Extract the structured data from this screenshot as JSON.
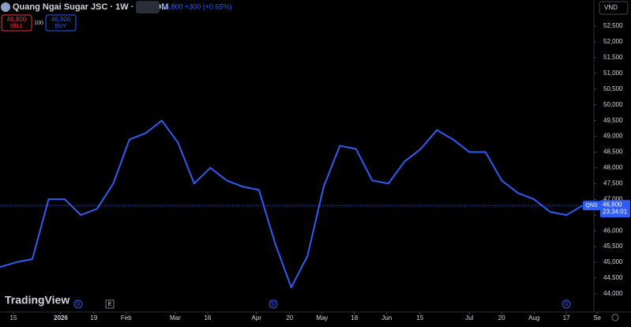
{
  "header": {
    "title": "Quang Ngai Sugar JSC · 1W · UPCOM",
    "quote": "46,800 +300 (+0.65%)",
    "sell_price": "46,800",
    "sell_label": "SELL",
    "spread": "100",
    "buy_price": "46,900",
    "buy_label": "BUY",
    "currency": "VND",
    "logo": "TradingView",
    "event_d": "D",
    "event_e": "E"
  },
  "chart_data": {
    "type": "line",
    "symbol": "QNS",
    "countdown": "23:34:01",
    "color": "#2f5cf6",
    "values": [
      44850,
      45000,
      45100,
      47000,
      47000,
      46500,
      46700,
      47500,
      48900,
      49100,
      49500,
      48800,
      47500,
      48000,
      47600,
      47400,
      47300,
      45600,
      44200,
      45200,
      47400,
      48700,
      48600,
      47600,
      47500,
      48200,
      48600,
      49200,
      48900,
      48500,
      48500,
      47600,
      47200,
      47000,
      46600,
      46500,
      46800
    ],
    "last_price": {
      "value": 46800,
      "label": "46,800"
    },
    "ylim": [
      43420,
      53330
    ],
    "yticks": [
      {
        "value": 44000,
        "label": "44,000"
      },
      {
        "value": 44500,
        "label": "44,500"
      },
      {
        "value": 45000,
        "label": "45,000"
      },
      {
        "value": 45500,
        "label": "45,500"
      },
      {
        "value": 46000,
        "label": "46,000"
      },
      {
        "value": 46500,
        "label": "46,500"
      },
      {
        "value": 47000,
        "label": "47,000"
      },
      {
        "value": 47500,
        "label": "47,500"
      },
      {
        "value": 48000,
        "label": "48,000"
      },
      {
        "value": 48500,
        "label": "48,500"
      },
      {
        "value": 49000,
        "label": "49,000"
      },
      {
        "value": 49500,
        "label": "49,500"
      },
      {
        "value": 50000,
        "label": "50,000"
      },
      {
        "value": 50500,
        "label": "50,500"
      },
      {
        "value": 51000,
        "label": "51,000"
      },
      {
        "value": 51500,
        "label": "51,500"
      },
      {
        "value": 52000,
        "label": "52,000"
      },
      {
        "value": 52500,
        "label": "52,500"
      }
    ],
    "xlim": [
      0,
      36.7
    ],
    "xticks": [
      {
        "value": 0.83,
        "label": "15"
      },
      {
        "value": 3.76,
        "label": "2026"
      },
      {
        "value": 5.8,
        "label": "19"
      },
      {
        "value": 7.8,
        "label": "Feb"
      },
      {
        "value": 10.83,
        "label": "Mar"
      },
      {
        "value": 12.83,
        "label": "16"
      },
      {
        "value": 15.85,
        "label": "Apr"
      },
      {
        "value": 17.9,
        "label": "20"
      },
      {
        "value": 19.9,
        "label": "May"
      },
      {
        "value": 21.9,
        "label": "18"
      },
      {
        "value": 23.9,
        "label": "Jun"
      },
      {
        "value": 25.95,
        "label": "15"
      },
      {
        "value": 29,
        "label": "Jul"
      },
      {
        "value": 31,
        "label": "20"
      },
      {
        "value": 33,
        "label": "Aug"
      },
      {
        "value": 35,
        "label": "17"
      },
      {
        "value": 36.9,
        "label": "Se"
      }
    ]
  }
}
